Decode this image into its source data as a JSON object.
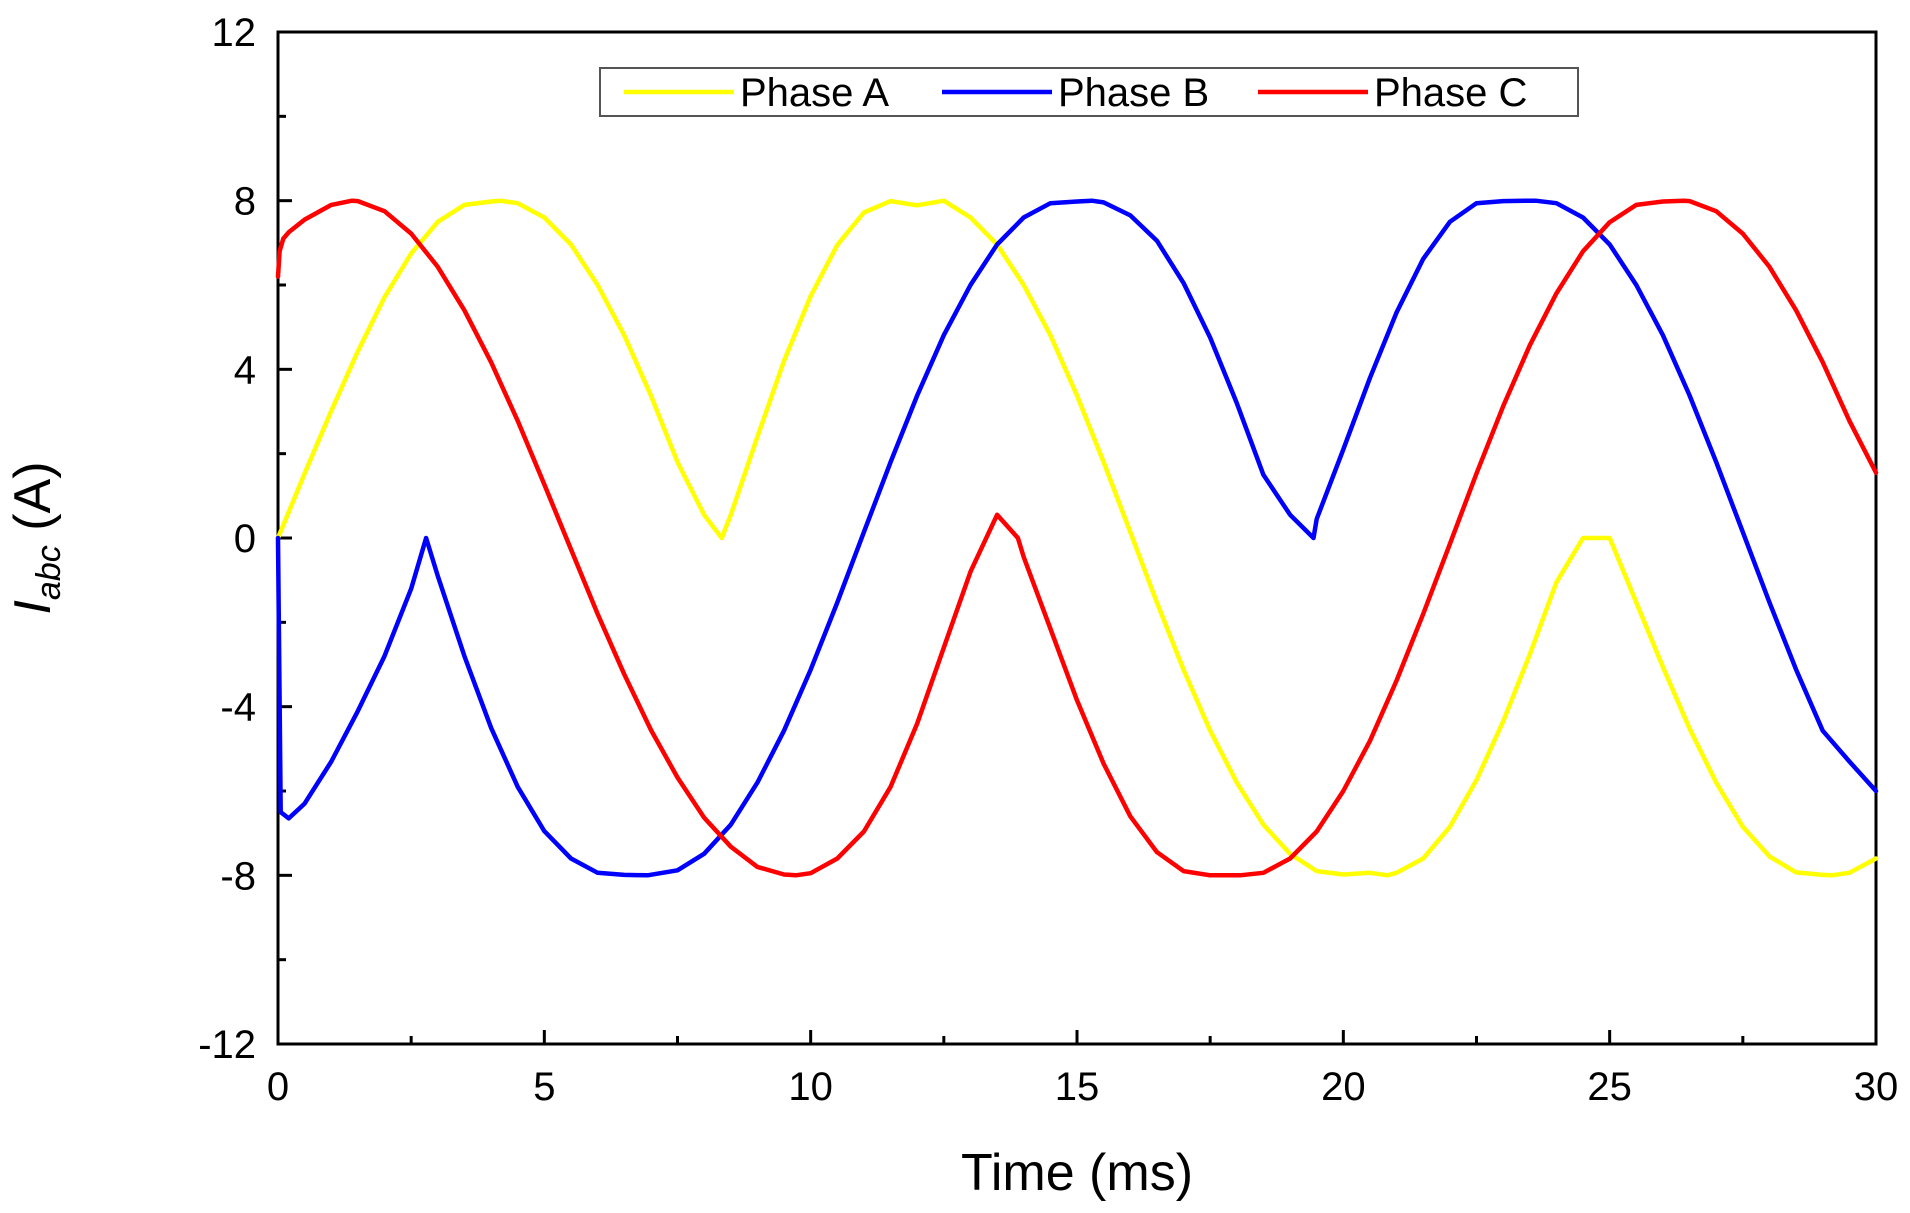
{
  "chart_data": {
    "type": "line",
    "title": "",
    "xlabel": "Time (ms)",
    "ylabel_main": "I",
    "ylabel_sub": "abc",
    "ylabel_unit": " (A)",
    "xlim": [
      0,
      30
    ],
    "ylim": [
      -12,
      12
    ],
    "x_ticks": [
      0,
      5,
      10,
      15,
      20,
      25,
      30
    ],
    "x_tick_labels": [
      "0",
      "5",
      "10",
      "15",
      "20",
      "25",
      "30"
    ],
    "y_ticks": [
      -12,
      -8,
      -4,
      0,
      4,
      8,
      12
    ],
    "y_tick_labels": [
      "-12",
      "-8",
      "-4",
      "0",
      "4",
      "8",
      "12"
    ],
    "grid": false,
    "legend_position": "top",
    "series": [
      {
        "name": "Phase A",
        "color": "#ffff00",
        "x": [
          0,
          0.5,
          1,
          1.5,
          2,
          2.5,
          3,
          3.5,
          4,
          4.17,
          4.5,
          5,
          5.5,
          6,
          6.5,
          7,
          7.5,
          8,
          8.33,
          8.5,
          9,
          9.5,
          10,
          10.5,
          11,
          11.5,
          12,
          12.5,
          13,
          13.5,
          14,
          14.5,
          15,
          15.5,
          16,
          16.5,
          17,
          17.5,
          18,
          18.5,
          19,
          19.5,
          20,
          20.5,
          20.83,
          21,
          21.5,
          22,
          22.5,
          23,
          23.5,
          24,
          24.5,
          25,
          25.5,
          26,
          26.5,
          27,
          27.5,
          28,
          28.5,
          29,
          29.17,
          29.5,
          30
        ],
        "values": [
          0,
          1.53,
          3.02,
          4.43,
          5.71,
          6.75,
          7.5,
          7.9,
          7.98,
          8.0,
          7.94,
          7.6,
          6.96,
          6.0,
          4.81,
          3.38,
          1.8,
          0.55,
          0,
          0.55,
          2.4,
          4.2,
          5.74,
          6.95,
          7.72,
          7.99,
          7.89,
          8.0,
          7.6,
          6.96,
          6.0,
          4.81,
          3.38,
          1.8,
          0.14,
          -1.53,
          -3.12,
          -4.57,
          -5.8,
          -6.8,
          -7.49,
          -7.9,
          -7.98,
          -7.94,
          -8.0,
          -7.94,
          -7.6,
          -6.85,
          -5.74,
          -4.35,
          -2.76,
          -1.05,
          0.0,
          0,
          -1.53,
          -3.06,
          -4.52,
          -5.8,
          -6.85,
          -7.55,
          -7.93,
          -7.99,
          -8.0,
          -7.94,
          -7.6
        ]
      },
      {
        "name": "Phase B",
        "color": "#0000ff",
        "x": [
          0,
          0.05,
          0.2,
          0.5,
          1,
          1.5,
          2,
          2.5,
          2.78,
          3,
          3.5,
          4,
          4.5,
          5,
          5.5,
          6,
          6.5,
          6.94,
          7.5,
          8,
          8.5,
          9,
          9.5,
          10,
          10.5,
          11,
          11.5,
          12,
          12.5,
          13,
          13.5,
          14,
          14.5,
          15,
          15.28,
          15.5,
          16,
          16.5,
          17,
          17.5,
          18,
          18.5,
          19,
          19.44,
          19.5,
          20,
          20.5,
          21,
          21.5,
          22,
          22.5,
          23,
          23.5,
          23.61,
          24,
          24.5,
          25,
          25.5,
          26,
          26.5,
          27,
          27.5,
          28,
          28.5,
          29,
          29.5,
          30
        ],
        "values": [
          0,
          -6.5,
          -6.65,
          -6.3,
          -5.3,
          -4.1,
          -2.8,
          -1.2,
          0,
          -0.9,
          -2.8,
          -4.5,
          -5.9,
          -6.95,
          -7.6,
          -7.94,
          -7.99,
          -8.0,
          -7.88,
          -7.49,
          -6.8,
          -5.8,
          -4.57,
          -3.12,
          -1.53,
          0.14,
          1.8,
          3.38,
          4.81,
          6.0,
          6.96,
          7.6,
          7.94,
          7.98,
          8.0,
          7.96,
          7.65,
          7.05,
          6.05,
          4.75,
          3.2,
          1.5,
          0.55,
          0,
          0.45,
          2.1,
          3.8,
          5.35,
          6.62,
          7.5,
          7.94,
          7.99,
          8.0,
          8.0,
          7.94,
          7.6,
          6.96,
          6.0,
          4.81,
          3.38,
          1.8,
          0.14,
          -1.53,
          -3.12,
          -4.57,
          -5.3,
          -6.0
        ]
      },
      {
        "name": "Phase C",
        "color": "#ff0000",
        "x": [
          0,
          0.03,
          0.1,
          0.2,
          0.5,
          1,
          1.39,
          1.5,
          2,
          2.5,
          3,
          3.5,
          4,
          4.5,
          5,
          5.5,
          6,
          6.5,
          7,
          7.5,
          8,
          8.5,
          9,
          9.5,
          9.72,
          10,
          10.5,
          11,
          11.5,
          12,
          12.5,
          13,
          13.5,
          13.89,
          14,
          14.5,
          15,
          15.5,
          16,
          16.5,
          17,
          17.5,
          18,
          18.06,
          18.5,
          19,
          19.5,
          20,
          20.5,
          21,
          21.5,
          22,
          22.5,
          23,
          23.5,
          24,
          24.5,
          25,
          25.5,
          26,
          26.39,
          26.5,
          27,
          27.5,
          28,
          28.5,
          29,
          29.5,
          30
        ],
        "values": [
          6.2,
          6.8,
          7.1,
          7.25,
          7.55,
          7.9,
          8.0,
          7.99,
          7.75,
          7.22,
          6.43,
          5.4,
          4.17,
          2.78,
          1.27,
          -0.27,
          -1.8,
          -3.23,
          -4.55,
          -5.68,
          -6.63,
          -7.32,
          -7.8,
          -7.98,
          -8.0,
          -7.95,
          -7.6,
          -6.96,
          -5.9,
          -4.4,
          -2.6,
          -0.8,
          0.55,
          0,
          -0.45,
          -2.15,
          -3.85,
          -5.35,
          -6.6,
          -7.45,
          -7.9,
          -8.0,
          -8.0,
          -8.0,
          -7.94,
          -7.6,
          -6.96,
          -6.0,
          -4.81,
          -3.38,
          -1.8,
          -0.14,
          1.53,
          3.12,
          4.57,
          5.8,
          6.8,
          7.49,
          7.9,
          7.98,
          8.0,
          7.99,
          7.75,
          7.22,
          6.43,
          5.4,
          4.17,
          2.78,
          1.55
        ]
      }
    ]
  }
}
